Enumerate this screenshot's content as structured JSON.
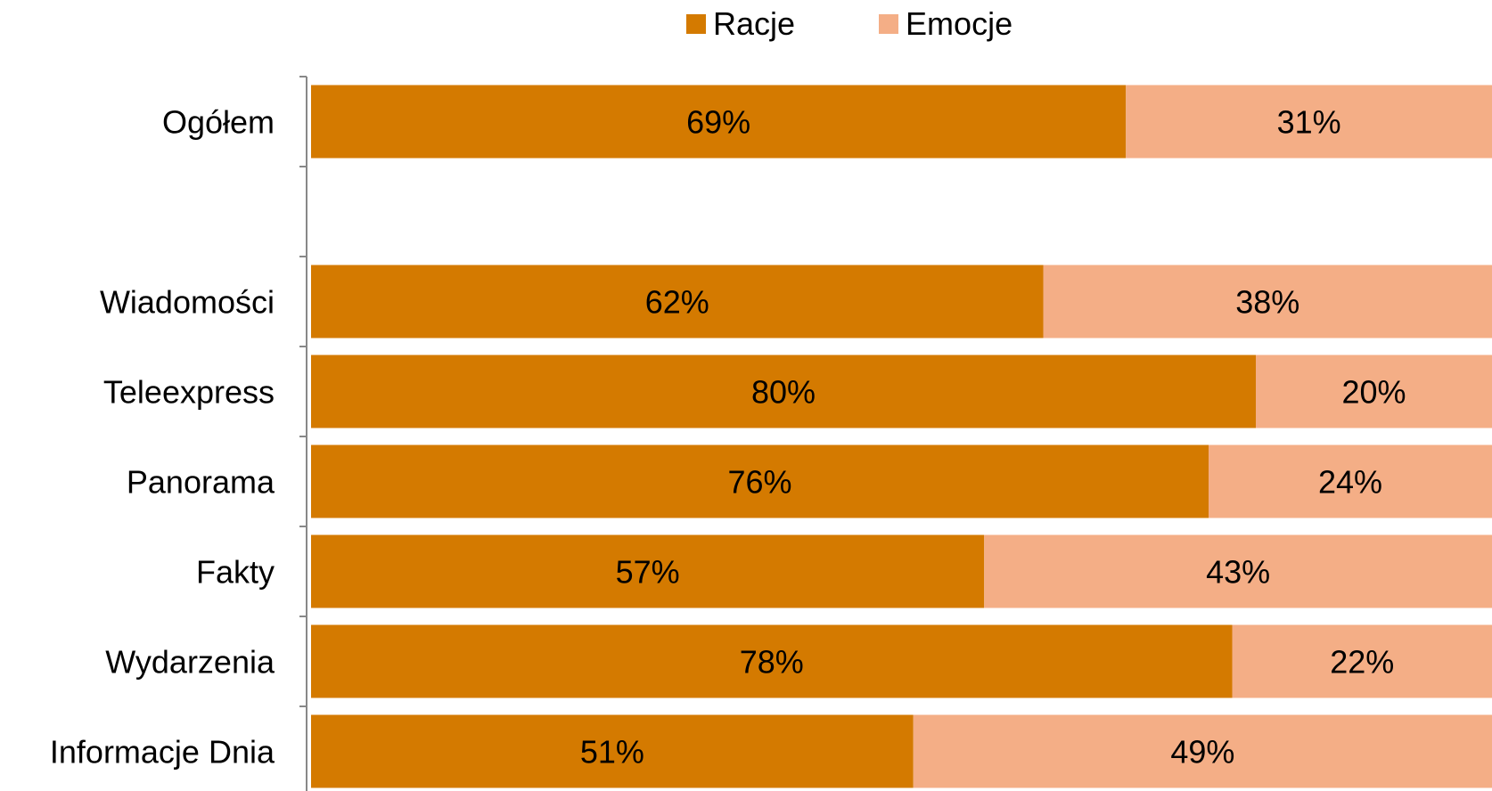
{
  "chart_data": {
    "type": "bar",
    "orientation": "horizontal",
    "stacked": true,
    "percent": true,
    "categories": [
      "Ogółem",
      "",
      "Wiadomości",
      "Teleexpress",
      "Panorama",
      "Fakty",
      "Wydarzenia",
      "Informacje Dnia"
    ],
    "series": [
      {
        "name": "Racje",
        "color": "#d47a00",
        "values": [
          69,
          null,
          62,
          80,
          76,
          57,
          78,
          51
        ],
        "labels": [
          "69%",
          "",
          "62%",
          "80%",
          "76%",
          "57%",
          "78%",
          "51%"
        ]
      },
      {
        "name": "Emocje",
        "color": "#f4ae86",
        "values": [
          31,
          null,
          38,
          20,
          24,
          43,
          22,
          49
        ],
        "labels": [
          "31%",
          "",
          "38%",
          "20%",
          "24%",
          "43%",
          "22%",
          "49%"
        ]
      }
    ],
    "xlim": [
      0,
      100
    ],
    "legend": "top",
    "grid": false
  }
}
